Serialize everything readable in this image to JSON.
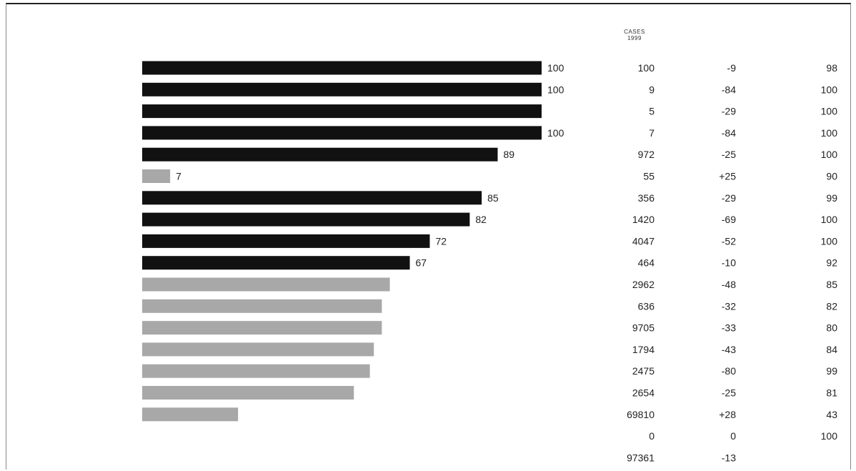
{
  "header": {
    "line1": "CASES",
    "line2": "1999"
  },
  "chart_data": {
    "type": "bar",
    "xlim": [
      0,
      100
    ],
    "bar_labels": [
      "100",
      "100",
      "",
      "100",
      "89",
      "7",
      "85",
      "82",
      "72",
      "67",
      "",
      "",
      "",
      "",
      "",
      "",
      "",
      "",
      ""
    ],
    "rows": [
      {
        "value": 100,
        "cases": "100",
        "change": "-9",
        "pct": "98"
      },
      {
        "value": 100,
        "cases": "9",
        "change": "-84",
        "pct": "100"
      },
      {
        "value": 100,
        "cases": "5",
        "change": "-29",
        "pct": "100"
      },
      {
        "value": 100,
        "cases": "7",
        "change": "-84",
        "pct": "100"
      },
      {
        "value": 89,
        "cases": "972",
        "change": "-25",
        "pct": "100"
      },
      {
        "value": 7,
        "cases": "55",
        "change": "+25",
        "pct": "90"
      },
      {
        "value": 85,
        "cases": "356",
        "change": "-29",
        "pct": "99"
      },
      {
        "value": 82,
        "cases": "1420",
        "change": "-69",
        "pct": "100"
      },
      {
        "value": 72,
        "cases": "4047",
        "change": "-52",
        "pct": "100"
      },
      {
        "value": 67,
        "cases": "464",
        "change": "-10",
        "pct": "92"
      },
      {
        "value": 62,
        "cases": "2962",
        "change": "-48",
        "pct": "85"
      },
      {
        "value": 60,
        "cases": "636",
        "change": "-32",
        "pct": "82"
      },
      {
        "value": 60,
        "cases": "9705",
        "change": "-33",
        "pct": "80"
      },
      {
        "value": 58,
        "cases": "1794",
        "change": "-43",
        "pct": "84"
      },
      {
        "value": 57,
        "cases": "2475",
        "change": "-80",
        "pct": "99"
      },
      {
        "value": 53,
        "cases": "2654",
        "change": "-25",
        "pct": "81"
      },
      {
        "value": 24,
        "cases": "69810",
        "change": "+28",
        "pct": "43"
      },
      {
        "value": 0,
        "cases": "0",
        "change": "0",
        "pct": "100"
      },
      {
        "value": 0,
        "cases": "97361",
        "change": "-13",
        "pct": ""
      }
    ]
  },
  "colors": {
    "dark": "#111111",
    "light": "#a8a8a8",
    "text": "#222222"
  }
}
